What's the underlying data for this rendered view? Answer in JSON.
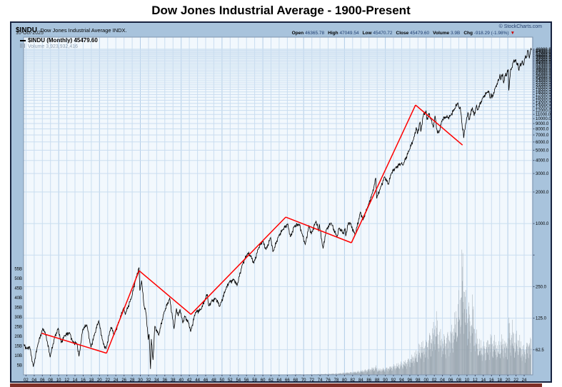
{
  "page_title": "Dow Jones Industrial Average - 1900-Present",
  "header": {
    "symbol": "$INDU",
    "name": "Dow Jones Industrial Average INDX.",
    "date": "10-Oct-2025",
    "copyright": "© StockCharts.com",
    "quote": {
      "open_label": "Open",
      "open": "46365.78",
      "high_label": "High",
      "high": "47049.54",
      "low_label": "Low",
      "low": "45470.72",
      "close_label": "Close",
      "close": "45479.60",
      "volume_label": "Volume",
      "volume": "3.9B",
      "chg_label": "Chg",
      "chg": "-918.29 (-1.98%)",
      "chg_arrow": "▼"
    }
  },
  "legend": {
    "price": "$INDU (Monthly) 45479.60",
    "volume": "Volume 3,923,932,416"
  },
  "colors": {
    "margin_bg": "#a8c3dc",
    "plot_bg": "#f2f8fd",
    "grid_vertical": "#c9ddf0",
    "grid_vertical_decade": "#b2cde8",
    "grid_horizontal": "#c9ddf0",
    "plot_border": "#7f94ad",
    "price_line": "#000000",
    "volume_bar": "#97a3ad",
    "trendline": "#ff0000",
    "axis_text": "#000000",
    "tick": "#44506b",
    "border": "#17223f",
    "quote_value": "#1d3c6e",
    "chg_arrow": "#cc0000",
    "bottom_strip": "#7d2e26"
  },
  "chart_data": {
    "type": "line",
    "title": "$INDU Dow Jones Industrial Average, monthly, log scale, 1900-present",
    "legend_position": "top-left",
    "grid": true,
    "x_axis": {
      "start_year": 1901.4,
      "end_year": 2026.1,
      "first_label_year": 1902,
      "label_step": 2,
      "labels": [
        "02",
        "04",
        "06",
        "08",
        "10",
        "12",
        "14",
        "16",
        "18",
        "20",
        "22",
        "24",
        "26",
        "28",
        "30",
        "32",
        "34",
        "36",
        "38",
        "40",
        "42",
        "44",
        "46",
        "48",
        "50",
        "52",
        "54",
        "56",
        "58",
        "60",
        "62",
        "64",
        "66",
        "68",
        "70",
        "72",
        "74",
        "76",
        "78",
        "80",
        "82",
        "84",
        "86",
        "88",
        "90",
        "92",
        "94",
        "96",
        "98",
        "00",
        "02",
        "04",
        "06",
        "08",
        "10",
        "12",
        "14",
        "16",
        "18",
        "20",
        "22",
        "24"
      ]
    },
    "y_axis": {
      "scale": "log",
      "min": 36,
      "max": 60000,
      "labels": [
        62.5,
        125.0,
        250.0,
        1000.0,
        2000.0,
        3000.0,
        4000.0,
        5000.0,
        6000.0,
        7000.0,
        8000.0,
        9000.0,
        10000.0,
        11000.0
      ],
      "stacked_labels": {
        "from": 12000,
        "to": 46000,
        "step": 1000
      },
      "grid_extra": [
        500
      ]
    },
    "volume_axis": {
      "unit": "B",
      "labels": [
        55,
        50,
        45,
        40,
        35,
        30,
        25,
        20,
        15,
        10,
        5
      ]
    },
    "price_series": [
      [
        1901.4,
        70
      ],
      [
        1902.2,
        64
      ],
      [
        1902.9,
        67
      ],
      [
        1903.8,
        43
      ],
      [
        1904.9,
        70
      ],
      [
        1906.1,
        100
      ],
      [
        1906.6,
        93
      ],
      [
        1907.2,
        75
      ],
      [
        1907.9,
        53
      ],
      [
        1909.0,
        82
      ],
      [
        1909.9,
        100
      ],
      [
        1910.6,
        73
      ],
      [
        1911.4,
        85
      ],
      [
        1912.7,
        91
      ],
      [
        1913.4,
        75
      ],
      [
        1914.5,
        71
      ],
      [
        1914.97,
        54
      ],
      [
        1915.9,
        98
      ],
      [
        1916.9,
        108
      ],
      [
        1917.9,
        66
      ],
      [
        1918.8,
        88
      ],
      [
        1919.8,
        118
      ],
      [
        1920.9,
        72
      ],
      [
        1921.6,
        64
      ],
      [
        1922.8,
        103
      ],
      [
        1923.6,
        87
      ],
      [
        1924.9,
        120
      ],
      [
        1925.9,
        157
      ],
      [
        1926.3,
        136
      ],
      [
        1927.9,
        200
      ],
      [
        1928.9,
        299
      ],
      [
        1929.68,
        381
      ],
      [
        1929.87,
        230
      ],
      [
        1930.3,
        286
      ],
      [
        1930.9,
        165
      ],
      [
        1931.4,
        140
      ],
      [
        1931.95,
        78
      ],
      [
        1932.15,
        88
      ],
      [
        1932.5,
        41
      ],
      [
        1932.7,
        79
      ],
      [
        1933.1,
        50
      ],
      [
        1933.55,
        105
      ],
      [
        1934.5,
        86
      ],
      [
        1935.8,
        142
      ],
      [
        1937.2,
        194
      ],
      [
        1938.25,
        99
      ],
      [
        1938.85,
        155
      ],
      [
        1939.3,
        131
      ],
      [
        1939.72,
        152
      ],
      [
        1940.4,
        112
      ],
      [
        1940.85,
        131
      ],
      [
        1941.9,
        111
      ],
      [
        1942.32,
        93
      ],
      [
        1943.5,
        142
      ],
      [
        1944.9,
        152
      ],
      [
        1945.95,
        193
      ],
      [
        1946.4,
        212
      ],
      [
        1946.75,
        163
      ],
      [
        1947.4,
        181
      ],
      [
        1948.45,
        193
      ],
      [
        1949.45,
        162
      ],
      [
        1950.9,
        235
      ],
      [
        1951.75,
        276
      ],
      [
        1952.95,
        292
      ],
      [
        1953.7,
        256
      ],
      [
        1954.95,
        404
      ],
      [
        1956.28,
        521
      ],
      [
        1956.9,
        499
      ],
      [
        1957.8,
        420
      ],
      [
        1958.95,
        584
      ],
      [
        1959.95,
        679
      ],
      [
        1960.8,
        566
      ],
      [
        1961.92,
        735
      ],
      [
        1962.48,
        536
      ],
      [
        1963.9,
        767
      ],
      [
        1964.9,
        874
      ],
      [
        1966.1,
        995
      ],
      [
        1966.75,
        744
      ],
      [
        1967.7,
        943
      ],
      [
        1968.92,
        985
      ],
      [
        1969.6,
        801
      ],
      [
        1970.4,
        631
      ],
      [
        1971.3,
        951
      ],
      [
        1971.88,
        798
      ],
      [
        1973.02,
        1052
      ],
      [
        1973.65,
        851
      ],
      [
        1973.82,
        988
      ],
      [
        1974.75,
        578
      ],
      [
        1975.55,
        879
      ],
      [
        1976.72,
        1015
      ],
      [
        1978.17,
        742
      ],
      [
        1978.7,
        908
      ],
      [
        1979.8,
        796
      ],
      [
        1980.12,
        904
      ],
      [
        1980.3,
        759
      ],
      [
        1980.9,
        1000
      ],
      [
        1981.32,
        1024
      ],
      [
        1982.6,
        777
      ],
      [
        1983.9,
        1287
      ],
      [
        1984.55,
        1087
      ],
      [
        1985.95,
        1547
      ],
      [
        1986.7,
        1896
      ],
      [
        1987.15,
        2158
      ],
      [
        1987.65,
        2722
      ],
      [
        1987.88,
        1739
      ],
      [
        1988.8,
        2183
      ],
      [
        1989.8,
        2791
      ],
      [
        1990.78,
        2365
      ],
      [
        1991.45,
        3004
      ],
      [
        1992.45,
        3398
      ],
      [
        1993.95,
        3754
      ],
      [
        1994.3,
        3593
      ],
      [
        1995.95,
        5117
      ],
      [
        1996.95,
        6448
      ],
      [
        1997.6,
        8259
      ],
      [
        1997.85,
        7161
      ],
      [
        1998.52,
        9338
      ],
      [
        1998.68,
        7539
      ],
      [
        1999.38,
        11107
      ],
      [
        2000.03,
        11723
      ],
      [
        2000.2,
        9796
      ],
      [
        2000.65,
        11215
      ],
      [
        2001.2,
        9878
      ],
      [
        2001.73,
        8236
      ],
      [
        2002.2,
        10635
      ],
      [
        2002.75,
        7286
      ],
      [
        2003.2,
        7524
      ],
      [
        2003.95,
        9782
      ],
      [
        2004.85,
        10428
      ],
      [
        2005.3,
        10192
      ],
      [
        2005.95,
        10718
      ],
      [
        2006.95,
        12343
      ],
      [
        2007.75,
        14165
      ],
      [
        2008.05,
        12650
      ],
      [
        2008.38,
        12820
      ],
      [
        2008.86,
        8176
      ],
      [
        2009.05,
        8001
      ],
      [
        2009.18,
        6547
      ],
      [
        2009.95,
        10345
      ],
      [
        2010.32,
        11205
      ],
      [
        2010.5,
        9686
      ],
      [
        2011.32,
        12811
      ],
      [
        2011.75,
        10655
      ],
      [
        2012.3,
        13232
      ],
      [
        2012.6,
        12101
      ],
      [
        2013.95,
        16086
      ],
      [
        2014.95,
        17823
      ],
      [
        2015.38,
        18312
      ],
      [
        2015.66,
        15666
      ],
      [
        2015.9,
        17425
      ],
      [
        2016.1,
        15660
      ],
      [
        2016.95,
        19763
      ],
      [
        2017.95,
        24272
      ],
      [
        2018.07,
        26617
      ],
      [
        2018.25,
        23533
      ],
      [
        2018.75,
        26828
      ],
      [
        2018.99,
        21792
      ],
      [
        2019.5,
        27359
      ],
      [
        2019.62,
        25479
      ],
      [
        2020.12,
        29551
      ],
      [
        2020.23,
        18591
      ],
      [
        2020.65,
        28430
      ],
      [
        2020.95,
        30606
      ],
      [
        2021.35,
        34778
      ],
      [
        2021.9,
        36338
      ],
      [
        2022.2,
        32977
      ],
      [
        2022.45,
        34061
      ],
      [
        2022.74,
        28726
      ],
      [
        2023.05,
        34086
      ],
      [
        2023.2,
        31862
      ],
      [
        2023.58,
        35630
      ],
      [
        2023.83,
        32417
      ],
      [
        2024.3,
        39807
      ],
      [
        2024.6,
        38589
      ],
      [
        2024.92,
        45014
      ],
      [
        2025.08,
        43239
      ],
      [
        2025.27,
        37646
      ],
      [
        2025.5,
        42700
      ],
      [
        2025.74,
        46300
      ],
      [
        2025.78,
        45480
      ]
    ],
    "volume_series": [
      [
        1901.4,
        0.03
      ],
      [
        1914,
        0.05
      ],
      [
        1929.8,
        0.12
      ],
      [
        1932,
        0.08
      ],
      [
        1940,
        0.03
      ],
      [
        1950,
        0.05
      ],
      [
        1960,
        0.08
      ],
      [
        1965,
        0.13
      ],
      [
        1968.5,
        0.3
      ],
      [
        1970,
        0.22
      ],
      [
        1975,
        0.38
      ],
      [
        1978,
        0.55
      ],
      [
        1980,
        0.9
      ],
      [
        1982.6,
        1.3
      ],
      [
        1985,
        2.0
      ],
      [
        1987.8,
        3.4
      ],
      [
        1988.2,
        2.2
      ],
      [
        1990,
        2.7
      ],
      [
        1992,
        3.8
      ],
      [
        1994,
        4.8
      ],
      [
        1996,
        6.8
      ],
      [
        1997.8,
        9.5
      ],
      [
        1998.7,
        13
      ],
      [
        1999.5,
        12
      ],
      [
        2000.3,
        14.5
      ],
      [
        2001.72,
        19
      ],
      [
        2002.6,
        23
      ],
      [
        2003.2,
        17
      ],
      [
        2004.2,
        15
      ],
      [
        2005.2,
        16.5
      ],
      [
        2006.4,
        19
      ],
      [
        2007.6,
        27
      ],
      [
        2008.2,
        31
      ],
      [
        2008.6,
        36
      ],
      [
        2008.83,
        52
      ],
      [
        2009.05,
        44
      ],
      [
        2009.2,
        40
      ],
      [
        2009.6,
        33
      ],
      [
        2010.05,
        27
      ],
      [
        2010.4,
        32
      ],
      [
        2010.62,
        23
      ],
      [
        2011.05,
        22
      ],
      [
        2011.35,
        30
      ],
      [
        2011.65,
        25
      ],
      [
        2012.1,
        17
      ],
      [
        2012.6,
        15
      ],
      [
        2013.2,
        13
      ],
      [
        2014.2,
        12
      ],
      [
        2015.2,
        14
      ],
      [
        2015.7,
        16
      ],
      [
        2016.1,
        15
      ],
      [
        2016.95,
        14
      ],
      [
        2017.5,
        11
      ],
      [
        2018.1,
        14
      ],
      [
        2019.0,
        15
      ],
      [
        2019.6,
        12
      ],
      [
        2020.25,
        23
      ],
      [
        2020.65,
        17
      ],
      [
        2020.95,
        18
      ],
      [
        2021.15,
        20
      ],
      [
        2021.6,
        15
      ],
      [
        2022.1,
        16
      ],
      [
        2022.6,
        15
      ],
      [
        2023.0,
        14
      ],
      [
        2023.4,
        12
      ],
      [
        2023.9,
        11
      ],
      [
        2024.4,
        12
      ],
      [
        2024.9,
        13
      ],
      [
        2025.2,
        16
      ],
      [
        2025.45,
        13
      ],
      [
        2025.65,
        15
      ],
      [
        2025.78,
        18
      ]
    ],
    "trendlines": [
      [
        [
          1905.8,
          90
        ],
        [
          1921.7,
          58
        ]
      ],
      [
        [
          1921.7,
          58
        ],
        [
          1929.7,
          355
        ]
      ],
      [
        [
          1929.7,
          355
        ],
        [
          1942.4,
          136
        ]
      ],
      [
        [
          1942.4,
          136
        ],
        [
          1965.6,
          1150
        ]
      ],
      [
        [
          1965.6,
          1150
        ],
        [
          1981.7,
          655
        ]
      ],
      [
        [
          1981.7,
          655
        ],
        [
          1997.4,
          13500
        ]
      ],
      [
        [
          1997.4,
          13500
        ],
        [
          2008.9,
          5600
        ]
      ]
    ]
  }
}
